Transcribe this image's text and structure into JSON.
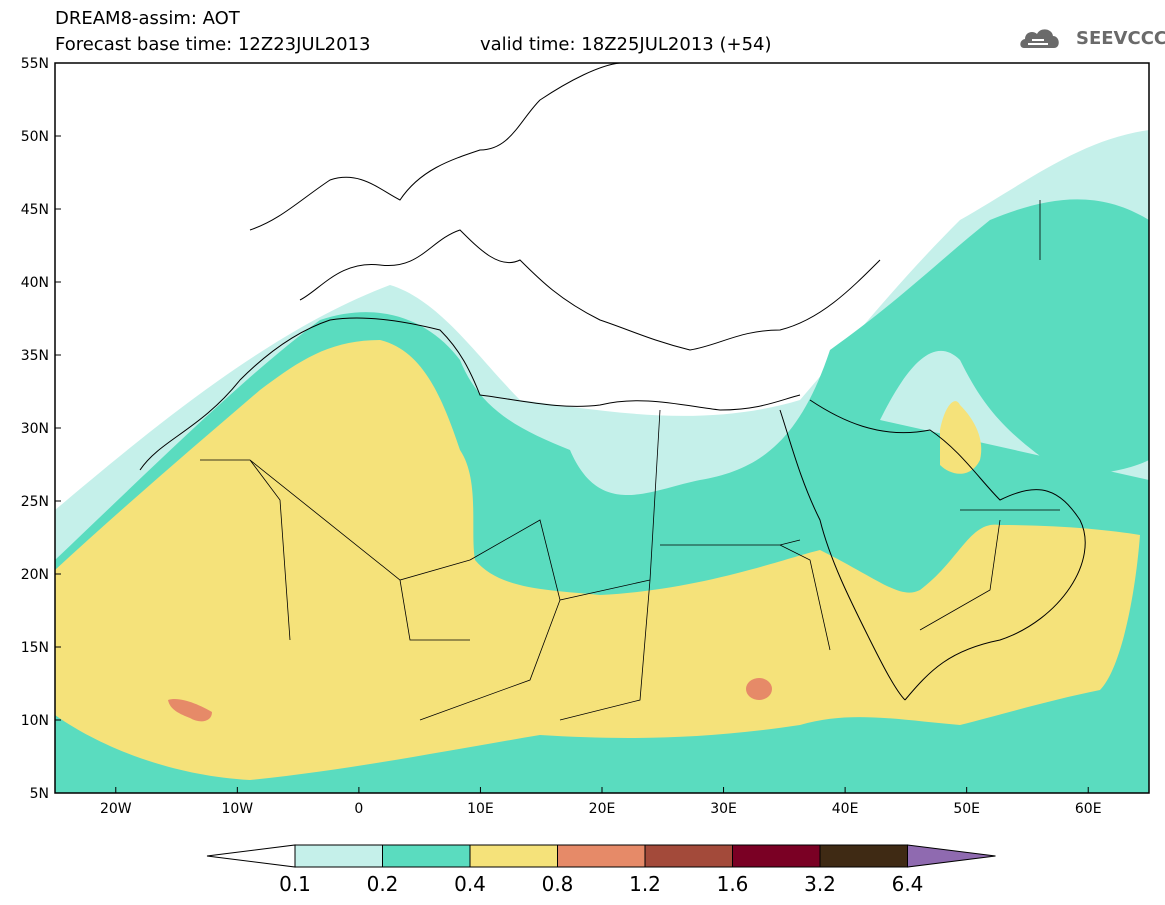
{
  "header": {
    "line1": "DREAM8-assim: AOT",
    "line2_base": "Forecast base time: 12Z23JUL2013",
    "line2_valid": "valid time: 18Z25JUL2013 (+54)",
    "logo_text": "SEEVCCC"
  },
  "map": {
    "lon_range": [
      -25,
      65
    ],
    "lat_range": [
      5,
      55
    ],
    "lat_labels": [
      "55N",
      "50N",
      "45N",
      "40N",
      "35N",
      "30N",
      "25N",
      "20N",
      "15N",
      "10N",
      "5N"
    ],
    "lon_labels": [
      "20W",
      "10W",
      "0",
      "10E",
      "20E",
      "30E",
      "40E",
      "50E",
      "60E"
    ],
    "fill_colors": {
      "c01": "#c5f0ea",
      "c02": "#5adcbf",
      "c04": "#f5e27a",
      "c08": "#e68a68"
    }
  },
  "colorbar": {
    "labels": [
      "0.1",
      "0.2",
      "0.4",
      "0.8",
      "1.2",
      "1.6",
      "3.2",
      "6.4"
    ],
    "colors": [
      "#ffffff",
      "#c5f0ea",
      "#5adcbf",
      "#f5e27a",
      "#e68a68",
      "#a34a3a",
      "#7a0024",
      "#3f2a14",
      "#8f6ab0"
    ]
  }
}
